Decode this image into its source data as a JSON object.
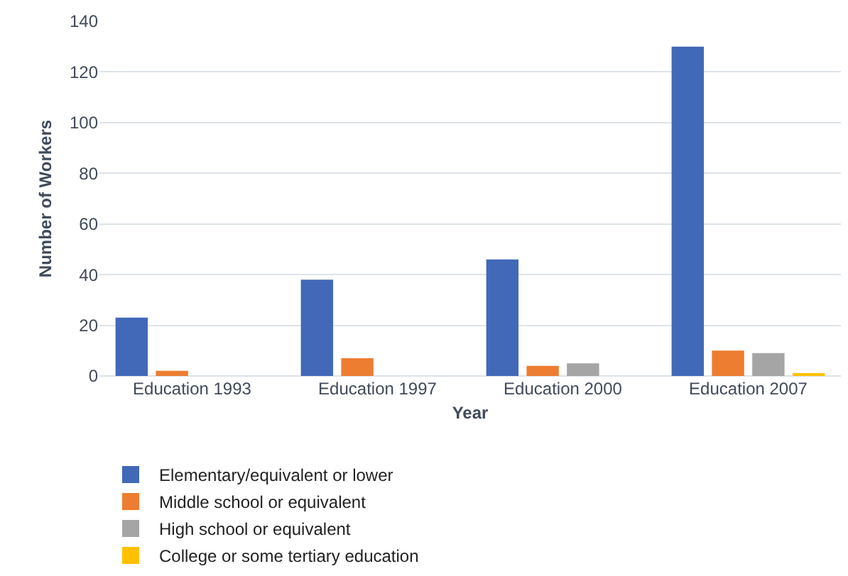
{
  "chart_data": {
    "type": "bar",
    "xlabel": "Year",
    "ylabel": "Number of Workers",
    "categories": [
      "Education 1993",
      "Education 1997",
      "Education 2000",
      "Education 2007"
    ],
    "series": [
      {
        "name": "Elementary/equivalent or lower",
        "color": "#4169b7",
        "values": [
          23,
          38,
          46,
          130
        ]
      },
      {
        "name": "Middle school or equivalent",
        "color": "#ed7d31",
        "values": [
          2,
          7,
          4,
          10
        ]
      },
      {
        "name": "High school or equivalent",
        "color": "#a5a5a5",
        "values": [
          0,
          0,
          5,
          9
        ]
      },
      {
        "name": "College or some tertiary education",
        "color": "#ffc000",
        "values": [
          0,
          0,
          0,
          1
        ]
      }
    ],
    "ylim": [
      0,
      140
    ],
    "yticks": [
      0,
      20,
      40,
      60,
      80,
      100,
      120,
      140
    ],
    "grid": "y",
    "legend": "bottom"
  }
}
